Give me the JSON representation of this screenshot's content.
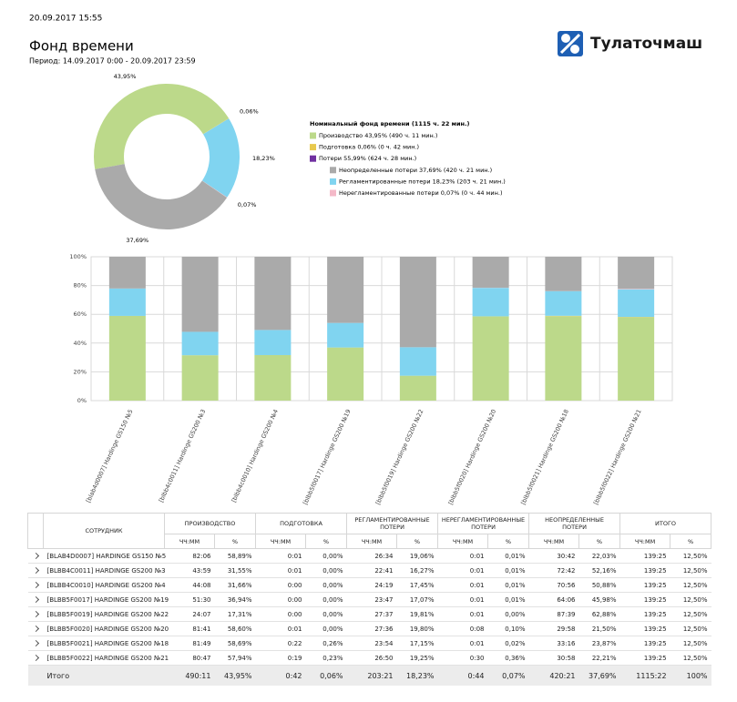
{
  "header": {
    "timestamp": "20.09.2017 15:55",
    "title": "Фонд времени",
    "period": "Период: 14.09.2017 0:00 - 20.09.2017 23:59",
    "logo": "Тулаточмаш"
  },
  "chart_data": [
    {
      "type": "donut",
      "values": [
        43.95,
        0.06,
        18.23,
        0.07,
        37.69
      ],
      "value_labels": [
        "43,95%",
        "0,06%",
        "18,23%",
        "0,07%",
        "37,69%"
      ],
      "colors": [
        "#bcd98a",
        "#e8c94e",
        "#80d4f0",
        "#f4b9c8",
        "#aaaaaa"
      ],
      "legend_title": "Номинальный фонд времени (1115 ч. 22 мин.)",
      "legend": [
        {
          "label": "Производство 43,95% (490 ч. 11 мин.)",
          "color": "#bcd98a",
          "level": 1
        },
        {
          "label": "Подготовка 0,06% (0 ч. 42 мин.)",
          "color": "#e8c94e",
          "level": 1
        },
        {
          "label": "Потери 55,99% (624 ч. 28 мин.)",
          "color": "#7030a0",
          "level": 1
        },
        {
          "label": "Неопределенные потери 37,69% (420 ч. 21 мин.)",
          "color": "#aaaaaa",
          "level": 2
        },
        {
          "label": "Регламентированные потери 18,23% (203 ч. 21 мин.)",
          "color": "#80d4f0",
          "level": 2
        },
        {
          "label": "Нерегламентированные потери 0,07% (0 ч. 44 мин.)",
          "color": "#f4b9c8",
          "level": 2
        }
      ]
    },
    {
      "type": "stacked_bar",
      "categories": [
        "[blab4d0007] Hardinge GS150 №5",
        "[blbb4c0011] Hardinge GS200 №3",
        "[blbb4c0010] Hardinge GS200 №4",
        "[blbb5f0017] Hardinge GS200 №19",
        "[blbb5f0019] Hardinge GS200 №22",
        "[blbb5f0020] Hardinge GS200 №20",
        "[blbb5f0021] Hardinge GS200 №18",
        "[blbb5f0022] Hardinge GS200 №21"
      ],
      "series": [
        {
          "color": "#bcd98a",
          "values": [
            58.89,
            31.55,
            31.66,
            36.94,
            17.31,
            58.6,
            58.69,
            57.94
          ]
        },
        {
          "color": "#e8c94e",
          "values": [
            0,
            0,
            0,
            0,
            0,
            0,
            0.26,
            0.23
          ]
        },
        {
          "color": "#80d4f0",
          "values": [
            19.06,
            16.27,
            17.45,
            17.07,
            19.81,
            19.8,
            17.15,
            19.25
          ]
        },
        {
          "color": "#f4b9c8",
          "values": [
            0.01,
            0.01,
            0.01,
            0.01,
            0,
            0.1,
            0.02,
            0.36
          ]
        },
        {
          "color": "#aaaaaa",
          "values": [
            22.03,
            52.16,
            50.88,
            45.98,
            62.88,
            21.5,
            23.87,
            22.21
          ]
        }
      ],
      "ylim": [
        0,
        100
      ],
      "yticks": [
        {
          "value": 0,
          "label": "0%"
        },
        {
          "value": 20,
          "label": "20%"
        },
        {
          "value": 40,
          "label": "40%"
        },
        {
          "value": 60,
          "label": "60%"
        },
        {
          "value": 80,
          "label": "80%"
        },
        {
          "value": 100,
          "label": "100%"
        }
      ],
      "grid": true
    }
  ],
  "table": {
    "columns": [
      "СОТРУДНИК",
      "ПРОИЗВОДСТВО",
      "ПОДГОТОВКА",
      "РЕГЛАМЕНТИРОВАННЫЕ ПОТЕРИ",
      "НЕРЕГЛАМЕНТИРОВАННЫЕ ПОТЕРИ",
      "НЕОПРЕДЕЛЕННЫЕ ПОТЕРИ",
      "ИТОГО"
    ],
    "subcolumns": [
      "ЧЧ:ММ",
      "%"
    ],
    "rows": [
      [
        "[BLAB4D0007] HARDINGE GS150 №5",
        "82:06",
        "58,89%",
        "0:01",
        "0,00%",
        "26:34",
        "19,06%",
        "0:01",
        "0,01%",
        "30:42",
        "22,03%",
        "139:25",
        "12,50%"
      ],
      [
        "[BLBB4C0011] HARDINGE GS200 №3",
        "43:59",
        "31,55%",
        "0:01",
        "0,00%",
        "22:41",
        "16,27%",
        "0:01",
        "0,01%",
        "72:42",
        "52,16%",
        "139:25",
        "12,50%"
      ],
      [
        "[BLBB4C0010] HARDINGE GS200 №4",
        "44:08",
        "31,66%",
        "0:00",
        "0,00%",
        "24:19",
        "17,45%",
        "0:01",
        "0,01%",
        "70:56",
        "50,88%",
        "139:25",
        "12,50%"
      ],
      [
        "[BLBB5F0017] HARDINGE GS200 №19",
        "51:30",
        "36,94%",
        "0:00",
        "0,00%",
        "23:47",
        "17,07%",
        "0:01",
        "0,01%",
        "64:06",
        "45,98%",
        "139:25",
        "12,50%"
      ],
      [
        "[BLBB5F0019] HARDINGE GS200 №22",
        "24:07",
        "17,31%",
        "0:00",
        "0,00%",
        "27:37",
        "19,81%",
        "0:01",
        "0,00%",
        "87:39",
        "62,88%",
        "139:25",
        "12,50%"
      ],
      [
        "[BLBB5F0020] HARDINGE GS200 №20",
        "81:41",
        "58,60%",
        "0:01",
        "0,00%",
        "27:36",
        "19,80%",
        "0:08",
        "0,10%",
        "29:58",
        "21,50%",
        "139:25",
        "12,50%"
      ],
      [
        "[BLBB5F0021] HARDINGE GS200 №18",
        "81:49",
        "58,69%",
        "0:22",
        "0,26%",
        "23:54",
        "17,15%",
        "0:01",
        "0,02%",
        "33:16",
        "23,87%",
        "139:25",
        "12,50%"
      ],
      [
        "[BLBB5F0022] HARDINGE GS200 №21",
        "80:47",
        "57,94%",
        "0:19",
        "0,23%",
        "26:50",
        "19,25%",
        "0:30",
        "0,36%",
        "30:58",
        "22,21%",
        "139:25",
        "12,50%"
      ]
    ],
    "total": [
      "Итого",
      "490:11",
      "43,95%",
      "0:42",
      "0,06%",
      "203:21",
      "18,23%",
      "0:44",
      "0,07%",
      "420:21",
      "37,69%",
      "1115:22",
      "100%"
    ]
  }
}
